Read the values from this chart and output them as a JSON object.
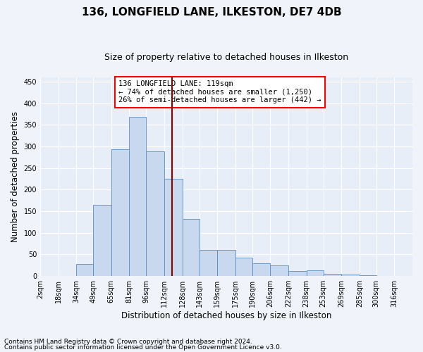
{
  "title": "136, LONGFIELD LANE, ILKESTON, DE7 4DB",
  "subtitle": "Size of property relative to detached houses in Ilkeston",
  "xlabel": "Distribution of detached houses by size in Ilkeston",
  "ylabel": "Number of detached properties",
  "footnote1": "Contains HM Land Registry data © Crown copyright and database right 2024.",
  "footnote2": "Contains public sector information licensed under the Open Government Licence v3.0.",
  "annotation_line1": "136 LONGFIELD LANE: 119sqm",
  "annotation_line2": "← 74% of detached houses are smaller (1,250)",
  "annotation_line3": "26% of semi-detached houses are larger (442) →",
  "bar_color": "#c8d9ef",
  "bar_edge_color": "#5a8fc3",
  "vline_x": 119,
  "vline_color": "#8b0000",
  "categories": [
    "2sqm",
    "18sqm",
    "34sqm",
    "49sqm",
    "65sqm",
    "81sqm",
    "96sqm",
    "112sqm",
    "128sqm",
    "143sqm",
    "159sqm",
    "175sqm",
    "190sqm",
    "206sqm",
    "222sqm",
    "238sqm",
    "253sqm",
    "269sqm",
    "285sqm",
    "300sqm",
    "316sqm"
  ],
  "bin_edges": [
    2,
    18,
    34,
    49,
    65,
    81,
    96,
    112,
    128,
    143,
    159,
    175,
    190,
    206,
    222,
    238,
    253,
    269,
    285,
    300,
    316,
    332
  ],
  "values": [
    0,
    0,
    28,
    165,
    293,
    368,
    288,
    225,
    133,
    60,
    60,
    42,
    30,
    25,
    12,
    13,
    5,
    3,
    1,
    0,
    0
  ],
  "ylim": [
    0,
    460
  ],
  "yticks": [
    0,
    50,
    100,
    150,
    200,
    250,
    300,
    350,
    400,
    450
  ],
  "fig_bg_color": "#f0f4fa",
  "plot_bg_color": "#e8eef8",
  "grid_color": "#ffffff",
  "title_fontsize": 11,
  "subtitle_fontsize": 9,
  "axis_label_fontsize": 8.5,
  "tick_fontsize": 7,
  "footnote_fontsize": 6.5,
  "annotation_fontsize": 7.5
}
